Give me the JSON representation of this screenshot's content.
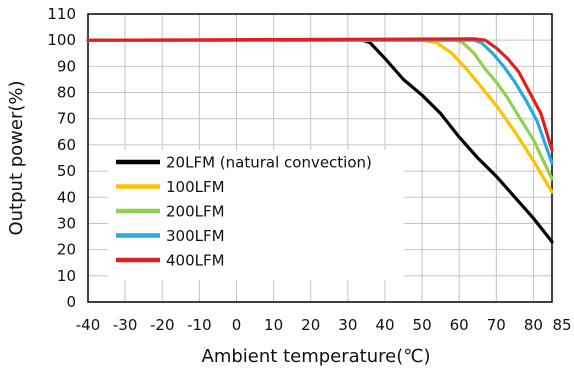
{
  "chart_data": {
    "type": "line",
    "title": "",
    "xlabel": "Ambient temperature(℃)",
    "ylabel": "Output power(%)",
    "xlim": [
      -40,
      85
    ],
    "ylim": [
      0,
      110
    ],
    "x_ticks": [
      "-40",
      "-30",
      "-20",
      "-10",
      "0",
      "10",
      "20",
      "30",
      "40",
      "50",
      "60",
      "70",
      "80",
      "85"
    ],
    "y_ticks": [
      "0",
      "10",
      "20",
      "30",
      "40",
      "50",
      "60",
      "70",
      "80",
      "90",
      "100",
      "110"
    ],
    "grid": true,
    "legend_position": "lower-left",
    "series": [
      {
        "name": "20LFM (natural convection)",
        "color": "#000000",
        "points": [
          [
            -40,
            100
          ],
          [
            34,
            100
          ],
          [
            36,
            99
          ],
          [
            40,
            93
          ],
          [
            45,
            85
          ],
          [
            50,
            79
          ],
          [
            55,
            72
          ],
          [
            60,
            63
          ],
          [
            65,
            55
          ],
          [
            70,
            48
          ],
          [
            75,
            40
          ],
          [
            80,
            32
          ],
          [
            85,
            23
          ]
        ]
      },
      {
        "name": "100LFM",
        "color": "#ffc000",
        "points": [
          [
            -40,
            100
          ],
          [
            50,
            100
          ],
          [
            54,
            99
          ],
          [
            58,
            95
          ],
          [
            62,
            89
          ],
          [
            66,
            82
          ],
          [
            70,
            75
          ],
          [
            75,
            65
          ],
          [
            80,
            54
          ],
          [
            85,
            42
          ]
        ]
      },
      {
        "name": "200LFM",
        "color": "#92d050",
        "points": [
          [
            -40,
            100
          ],
          [
            59,
            100
          ],
          [
            61,
            99
          ],
          [
            64,
            95
          ],
          [
            67,
            89
          ],
          [
            70,
            84
          ],
          [
            73,
            78
          ],
          [
            76,
            71
          ],
          [
            80,
            62
          ],
          [
            85,
            47
          ]
        ]
      },
      {
        "name": "300LFM",
        "color": "#2ea9df",
        "points": [
          [
            -40,
            100
          ],
          [
            64,
            100
          ],
          [
            66,
            99
          ],
          [
            69,
            95
          ],
          [
            72,
            90
          ],
          [
            75,
            84
          ],
          [
            78,
            77
          ],
          [
            81,
            69
          ],
          [
            85,
            53
          ]
        ]
      },
      {
        "name": "400LFM",
        "color": "#e02020",
        "points": [
          [
            -40,
            100
          ],
          [
            64,
            100.5
          ],
          [
            67,
            100
          ],
          [
            70,
            97
          ],
          [
            73,
            93
          ],
          [
            76,
            88
          ],
          [
            79,
            80
          ],
          [
            82,
            72
          ],
          [
            85,
            58
          ]
        ]
      }
    ]
  }
}
